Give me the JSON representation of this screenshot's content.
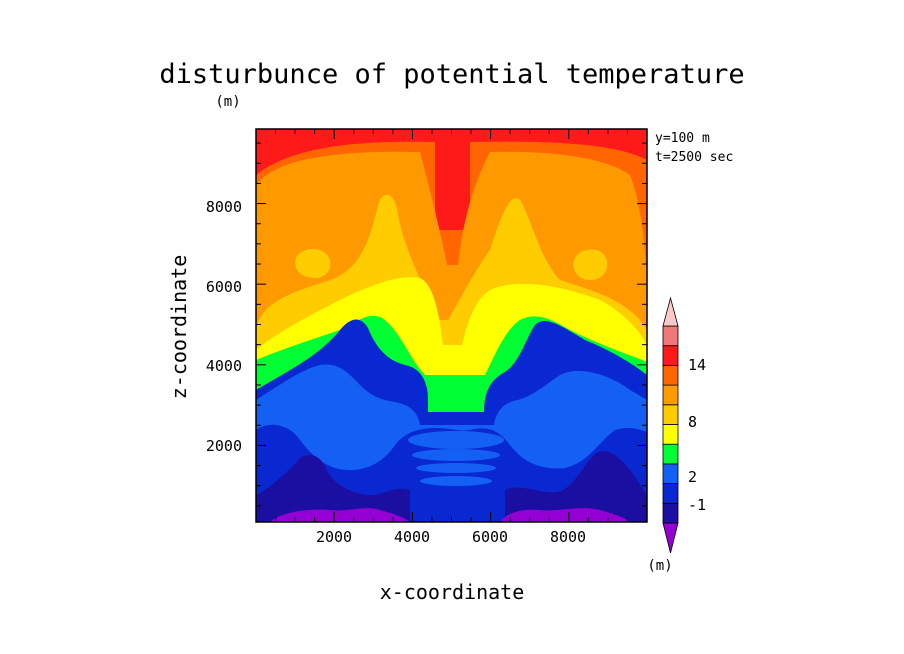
{
  "chart_data": {
    "type": "heatmap",
    "title": "disturbunce of potential temperature",
    "title_unit": "(m)",
    "xlabel": "x-coordinate",
    "ylabel": "z-coordinate",
    "xlim": [
      0,
      10000
    ],
    "ylim": [
      100,
      9850
    ],
    "x_ticks": [
      2000,
      4000,
      6000,
      8000
    ],
    "y_ticks": [
      2000,
      4000,
      6000,
      8000
    ],
    "annotations": [
      "y=100 m",
      "t=2500 sec"
    ],
    "colorbar": {
      "unit": "(m)",
      "labeled_levels": [
        "14",
        "8",
        "2",
        "-1"
      ],
      "levels": [
        -2,
        -1,
        0,
        1,
        2,
        4,
        6,
        8,
        10,
        12,
        14
      ],
      "colors": [
        "#9400d3",
        "#1a0fa0",
        "#0a28d2",
        "#1460f5",
        "#00ff32",
        "#ffff00",
        "#ffcc00",
        "#ff9900",
        "#ff6600",
        "#ff1a1a",
        "#f07878",
        "#ffc8c8"
      ]
    }
  }
}
